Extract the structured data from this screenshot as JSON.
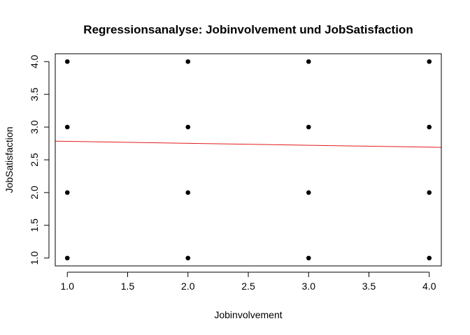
{
  "chart_data": {
    "type": "scatter",
    "title": "Regressionsanalyse: Jobinvolvement und JobSatisfaction",
    "xlabel": "Jobinvolvement",
    "ylabel": "JobSatisfaction",
    "xlim": [
      0.9,
      4.1
    ],
    "ylim": [
      0.88,
      4.12
    ],
    "xticks": [
      1.0,
      1.5,
      2.0,
      2.5,
      3.0,
      3.5,
      4.0
    ],
    "xtick_labels": [
      "1.0",
      "1.5",
      "2.0",
      "2.5",
      "3.0",
      "3.5",
      "4.0"
    ],
    "yticks": [
      1.0,
      1.5,
      2.0,
      2.5,
      3.0,
      3.5,
      4.0
    ],
    "ytick_labels": [
      "1.0",
      "1.5",
      "2.0",
      "2.5",
      "3.0",
      "3.5",
      "4.0"
    ],
    "grid": false,
    "series": [
      {
        "type": "scatter",
        "color": "#000000",
        "x": [
          1,
          1,
          1,
          1,
          2,
          2,
          2,
          2,
          3,
          3,
          3,
          3,
          4,
          4,
          4,
          4
        ],
        "y": [
          1,
          2,
          3,
          4,
          1,
          2,
          3,
          4,
          1,
          2,
          3,
          4,
          1,
          2,
          3,
          4
        ]
      },
      {
        "type": "line",
        "color": "#e41a1c",
        "x": [
          0.9,
          4.1
        ],
        "y": [
          2.785,
          2.69
        ]
      }
    ]
  }
}
